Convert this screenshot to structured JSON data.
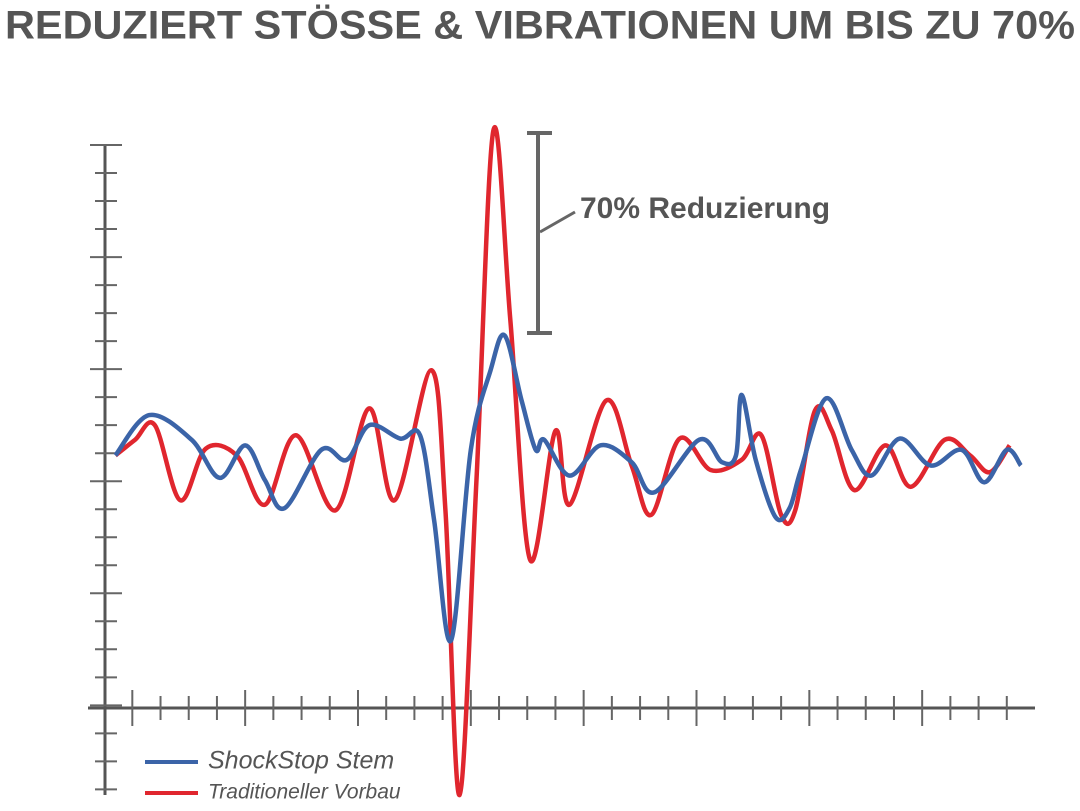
{
  "chart_data": {
    "type": "line",
    "title": "REDUZIERT STÖSSE & VIBRATIONEN UM BIS ZU 70%",
    "annotation": "70% Reduzierung",
    "xlim": [
      -1.5,
      32
    ],
    "ylim": [
      -28,
      30
    ],
    "xticks": [
      0,
      1,
      2,
      3,
      4,
      5,
      6,
      7,
      8,
      9,
      10,
      11,
      12,
      13,
      14,
      15,
      16,
      17,
      18,
      19,
      20,
      21,
      22,
      23,
      24,
      25,
      26,
      27,
      28,
      29,
      30,
      31
    ],
    "yticks": [
      -20,
      -10,
      0,
      10,
      20,
      30
    ],
    "series": [
      {
        "name": "ShockStop Stem",
        "color": "#3b64a8",
        "x": [
          -0.6,
          0.6,
          2.1,
          3.1,
          4.0,
          4.7,
          5.4,
          6.7,
          7.6,
          8.4,
          9.5,
          10.2,
          10.7,
          11.3,
          12.0,
          12.7,
          13.2,
          13.8,
          14.3,
          14.6,
          15.5,
          16.6,
          17.7,
          18.5,
          20.1,
          20.9,
          21.4,
          21.6,
          22.1,
          22.8,
          23.3,
          23.7,
          24.6,
          25.5,
          26.2,
          27.2,
          28.3,
          29.4,
          30.2,
          31.0,
          31.5
        ],
        "values": [
          2.3,
          5.9,
          3.7,
          0.3,
          3.2,
          0.1,
          -2.4,
          2.8,
          1.9,
          5.0,
          3.8,
          4.1,
          -3.5,
          -14.2,
          2.8,
          9.9,
          13.0,
          7.2,
          2.8,
          3.7,
          0.5,
          3.2,
          1.7,
          -1.0,
          3.7,
          1.7,
          2.3,
          7.7,
          1.9,
          -3.2,
          -2.4,
          1.0,
          7.4,
          2.8,
          0.5,
          3.8,
          1.4,
          2.8,
          -0.1,
          2.8,
          1.4
        ]
      },
      {
        "name": "Traditioneller Vorbau",
        "color": "#e0262e",
        "x": [
          -0.6,
          0.1,
          0.8,
          1.7,
          2.6,
          3.7,
          4.7,
          5.8,
          7.2,
          8.4,
          9.3,
          10.6,
          11.1,
          11.6,
          12.2,
          12.8,
          13.4,
          14.1,
          15.0,
          15.5,
          16.8,
          17.7,
          18.4,
          19.4,
          20.5,
          21.6,
          22.3,
          23.0,
          23.5,
          24.2,
          24.8,
          25.6,
          26.7,
          27.6,
          28.8,
          29.7,
          30.4,
          31.1
        ],
        "values": [
          2.3,
          3.7,
          5.0,
          -1.7,
          2.9,
          2.3,
          -2.1,
          4.1,
          -2.6,
          6.5,
          -1.7,
          9.9,
          -2.6,
          -28.0,
          0.1,
          31.3,
          14.4,
          -7.0,
          4.5,
          -2.1,
          7.2,
          1.4,
          -3.0,
          3.8,
          1.0,
          1.9,
          4.1,
          -3.0,
          -2.6,
          6.3,
          4.5,
          -0.8,
          3.2,
          -0.5,
          3.7,
          2.3,
          0.8,
          3.2
        ]
      }
    ]
  }
}
